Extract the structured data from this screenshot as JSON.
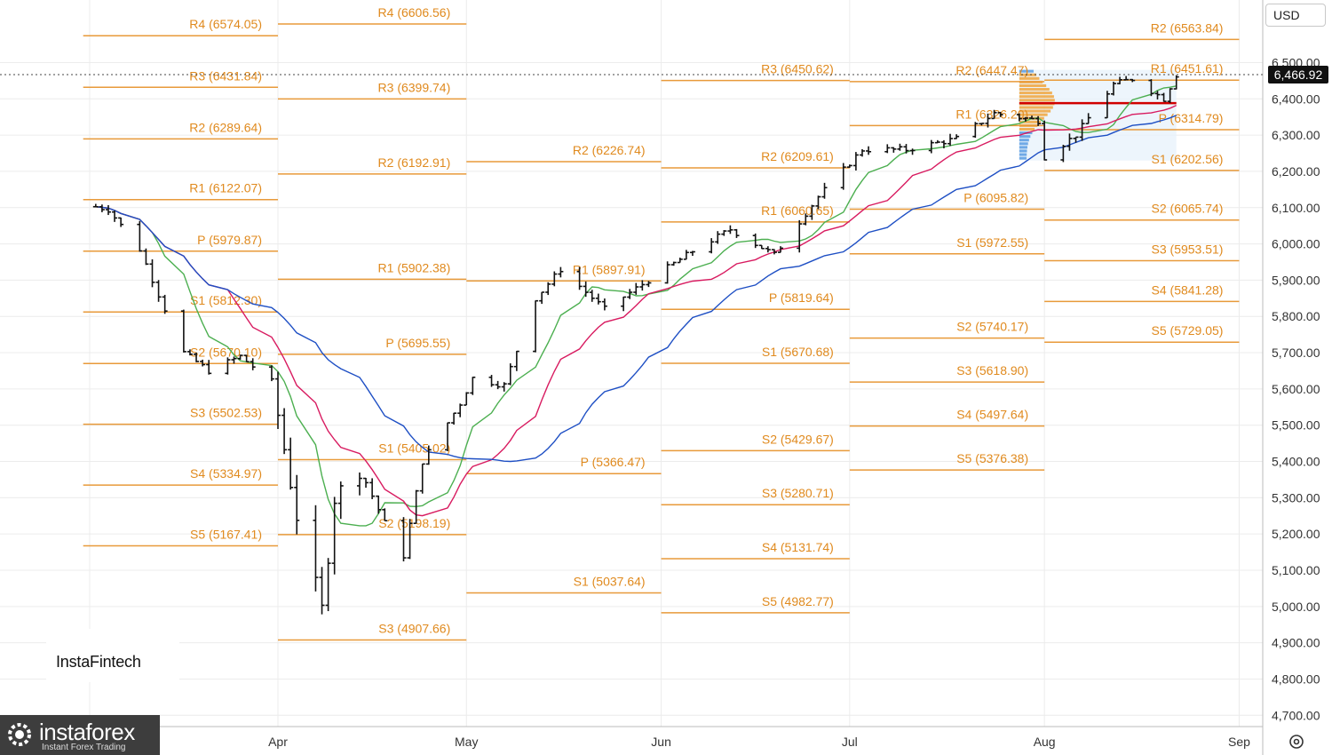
{
  "currency": {
    "selected": "USD"
  },
  "last_price_label": "6,466.92",
  "watermarks": {
    "instafintech": "InstaFintech",
    "instaforex": "instaforex",
    "instaforex_sub": "Instant Forex Trading"
  },
  "chart_data": {
    "type": "line",
    "subtype": "ohlc-bars-with-pivot-points",
    "last_price": 6466.92,
    "y_axis": {
      "ylim": [
        4680,
        6640
      ],
      "ticks": [
        "6,500.00",
        "6,400.00",
        "6,300.00",
        "6,200.00",
        "6,100.00",
        "6,000.00",
        "5,900.00",
        "5,800.00",
        "5,700.00",
        "5,600.00",
        "5,500.00",
        "5,400.00",
        "5,300.00",
        "5,200.00",
        "5,100.00",
        "5,000.00",
        "4,900.00",
        "4,800.00",
        "4,700.00"
      ],
      "tick_values": [
        6500,
        6400,
        6300,
        6200,
        6100,
        6000,
        5900,
        5800,
        5700,
        5600,
        5500,
        5400,
        5300,
        5200,
        5100,
        5000,
        4900,
        4800,
        4700
      ],
      "position": "right"
    },
    "x_axis": {
      "xlim": [
        "2025-03-01",
        "2025-09-09"
      ],
      "ticks": [
        "Apr",
        "May",
        "Jun",
        "Jul",
        "Aug",
        "Sep"
      ],
      "tick_dates": [
        "2025-04-01",
        "2025-05-01",
        "2025-06-01",
        "2025-07-01",
        "2025-08-01",
        "2025-09-01"
      ]
    },
    "grid": true,
    "pivot_periods": [
      {
        "start": "2025-03-01",
        "end": "2025-04-01",
        "levels": [
          {
            "name": "R4",
            "label": "R4 (6574.05)",
            "value": 6574.05
          },
          {
            "name": "R3",
            "label": "R3 (6431.84)",
            "value": 6431.84
          },
          {
            "name": "R2",
            "label": "R2 (6289.64)",
            "value": 6289.64
          },
          {
            "name": "R1",
            "label": "R1 (6122.07)",
            "value": 6122.07
          },
          {
            "name": "P",
            "label": "P (5979.87)",
            "value": 5979.87
          },
          {
            "name": "S1",
            "label": "S1 (5812.30)",
            "value": 5812.3
          },
          {
            "name": "S2",
            "label": "S2 (5670.10)",
            "value": 5670.1
          },
          {
            "name": "S3",
            "label": "S3 (5502.53)",
            "value": 5502.53
          },
          {
            "name": "S4",
            "label": "S4 (5334.97)",
            "value": 5334.97
          },
          {
            "name": "S5",
            "label": "S5 (5167.41)",
            "value": 5167.41
          }
        ]
      },
      {
        "start": "2025-04-01",
        "end": "2025-05-01",
        "levels": [
          {
            "name": "R4",
            "label": "R4 (6606.56)",
            "value": 6606.56
          },
          {
            "name": "R3",
            "label": "R3 (6399.74)",
            "value": 6399.74
          },
          {
            "name": "R2",
            "label": "R2 (6192.91)",
            "value": 6192.91
          },
          {
            "name": "R1",
            "label": "R1 (5902.38)",
            "value": 5902.38
          },
          {
            "name": "P",
            "label": "P (5695.55)",
            "value": 5695.55
          },
          {
            "name": "S1",
            "label": "S1 (5405.02)",
            "value": 5405.02
          },
          {
            "name": "S2",
            "label": "S2 (5198.19)",
            "value": 5198.19
          },
          {
            "name": "S3",
            "label": "S3 (4907.66)",
            "value": 4907.66
          }
        ]
      },
      {
        "start": "2025-05-01",
        "end": "2025-06-01",
        "levels": [
          {
            "name": "R2",
            "label": "R2 (6226.74)",
            "value": 6226.74
          },
          {
            "name": "R1",
            "label": "R1 (5897.91)",
            "value": 5897.91
          },
          {
            "name": "P",
            "label": "P (5366.47)",
            "value": 5366.47
          },
          {
            "name": "S1",
            "label": "S1 (5037.64)",
            "value": 5037.64
          }
        ]
      },
      {
        "start": "2025-06-01",
        "end": "2025-07-01",
        "levels": [
          {
            "name": "R3",
            "label": "R3 (6450.62)",
            "value": 6450.62
          },
          {
            "name": "R2",
            "label": "R2 (6209.61)",
            "value": 6209.61
          },
          {
            "name": "R1",
            "label": "R1 (6060.65)",
            "value": 6060.65
          },
          {
            "name": "P",
            "label": "P (5819.64)",
            "value": 5819.64
          },
          {
            "name": "S1",
            "label": "S1 (5670.68)",
            "value": 5670.68
          },
          {
            "name": "S2",
            "label": "S2 (5429.67)",
            "value": 5429.67
          },
          {
            "name": "S3",
            "label": "S3 (5280.71)",
            "value": 5280.71
          },
          {
            "name": "S4",
            "label": "S4 (5131.74)",
            "value": 5131.74
          },
          {
            "name": "S5",
            "label": "S5 (4982.77)",
            "value": 4982.77
          }
        ]
      },
      {
        "start": "2025-07-01",
        "end": "2025-08-01",
        "levels": [
          {
            "name": "R2",
            "label": "R2 (6447.47)",
            "value": 6447.47
          },
          {
            "name": "R1",
            "label": "R1 (6326.20)",
            "value": 6326.2
          },
          {
            "name": "P",
            "label": "P (6095.82)",
            "value": 6095.82
          },
          {
            "name": "S1",
            "label": "S1 (5972.55)",
            "value": 5972.55
          },
          {
            "name": "S2",
            "label": "S2 (5740.17)",
            "value": 5740.17
          },
          {
            "name": "S3",
            "label": "S3 (5618.90)",
            "value": 5618.9
          },
          {
            "name": "S4",
            "label": "S4 (5497.64)",
            "value": 5497.64
          },
          {
            "name": "S5",
            "label": "S5 (5376.38)",
            "value": 5376.38
          }
        ]
      },
      {
        "start": "2025-08-01",
        "end": "2025-09-01",
        "levels": [
          {
            "name": "R2",
            "label": "R2 (6563.84)",
            "value": 6563.84
          },
          {
            "name": "R1",
            "label": "R1 (6451.61)",
            "value": 6451.61
          },
          {
            "name": "P",
            "label": "P (6314.79)",
            "value": 6314.79
          },
          {
            "name": "S1",
            "label": "S1 (6202.56)",
            "value": 6202.56
          },
          {
            "name": "S2",
            "label": "S2 (6065.74)",
            "value": 6065.74
          },
          {
            "name": "S3",
            "label": "S3 (5953.51)",
            "value": 5953.51
          },
          {
            "name": "S4",
            "label": "S4 (5841.28)",
            "value": 5841.28
          },
          {
            "name": "S5",
            "label": "S5 (5729.05)",
            "value": 5729.05
          }
        ]
      }
    ],
    "price_anchors": [
      [
        "2025-03-01",
        6110
      ],
      [
        "2025-03-05",
        6095
      ],
      [
        "2025-03-10",
        5985
      ],
      [
        "2025-03-13",
        5860
      ],
      [
        "2025-03-17",
        5700
      ],
      [
        "2025-03-21",
        5650
      ],
      [
        "2025-03-26",
        5690
      ],
      [
        "2025-03-31",
        5620
      ],
      [
        "2025-04-04",
        5250
      ],
      [
        "2025-04-08",
        4990
      ],
      [
        "2025-04-10",
        5300
      ],
      [
        "2025-04-14",
        5380
      ],
      [
        "2025-04-18",
        5230
      ],
      [
        "2025-04-21",
        5140
      ],
      [
        "2025-04-24",
        5400
      ],
      [
        "2025-04-30",
        5560
      ],
      [
        "2025-05-02",
        5630
      ],
      [
        "2025-05-07",
        5610
      ],
      [
        "2025-05-12",
        5850
      ],
      [
        "2025-05-16",
        5930
      ],
      [
        "2025-05-23",
        5820
      ],
      [
        "2025-05-30",
        5900
      ],
      [
        "2025-06-06",
        5980
      ],
      [
        "2025-06-12",
        6040
      ],
      [
        "2025-06-19",
        5970
      ],
      [
        "2025-06-26",
        6130
      ],
      [
        "2025-07-03",
        6260
      ],
      [
        "2025-07-10",
        6260
      ],
      [
        "2025-07-18",
        6290
      ],
      [
        "2025-07-24",
        6360
      ],
      [
        "2025-07-31",
        6340
      ],
      [
        "2025-08-01",
        6240
      ],
      [
        "2025-08-06",
        6300
      ],
      [
        "2025-08-12",
        6440
      ],
      [
        "2025-08-15",
        6455
      ],
      [
        "2025-08-20",
        6400
      ],
      [
        "2025-08-22",
        6466.92
      ]
    ],
    "moving_averages": [
      {
        "color": "#4caf50"
      },
      {
        "color": "#d81b60"
      },
      {
        "color": "#1e4fc4"
      }
    ],
    "value_profile": {
      "range_start": "2025-07-28",
      "range_end": "2025-08-22",
      "poc": 6388,
      "high": 6480,
      "low": 6230
    }
  }
}
